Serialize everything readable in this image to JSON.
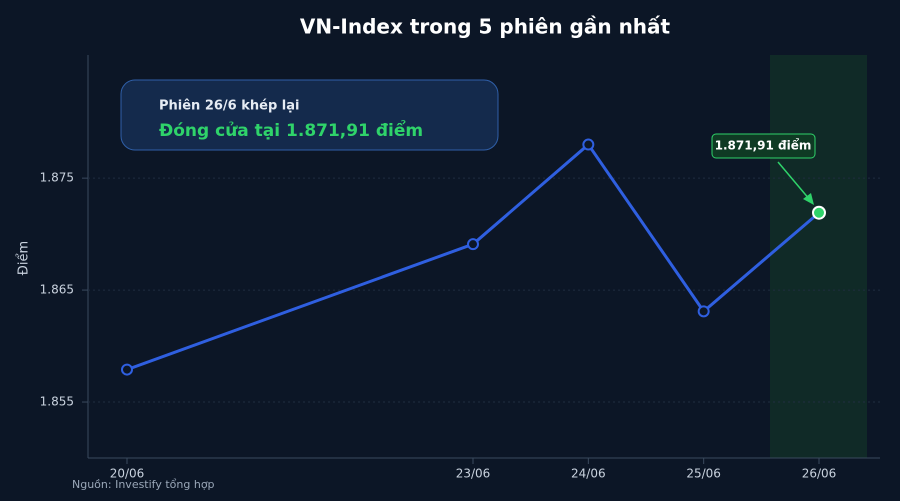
{
  "chart_data": {
    "type": "line",
    "title": "VN-Index trong 5 phiên gần nhất",
    "y_label": "Điểm",
    "x": [
      "20/06",
      "23/06",
      "24/06",
      "25/06",
      "26/06"
    ],
    "series": [
      {
        "name": "VN-Index",
        "color": "#2f5fe0",
        "values": [
          1857.9,
          1869.1,
          1878.0,
          1863.1,
          1871.91
        ]
      }
    ],
    "ylim": [
      1850,
      1886
    ],
    "yticks": [
      {
        "value": 1855,
        "label": "1.855"
      },
      {
        "value": 1865,
        "label": "1.865"
      },
      {
        "value": 1875,
        "label": "1.875"
      }
    ],
    "grid": true,
    "annotation": {
      "title": "Phiên 26/6 khép lại",
      "text": "Đóng cửa tại 1.871,91 điểm"
    },
    "callout": "1.871,91 điểm",
    "source": "Nguồn: Investify tổng hợp"
  }
}
